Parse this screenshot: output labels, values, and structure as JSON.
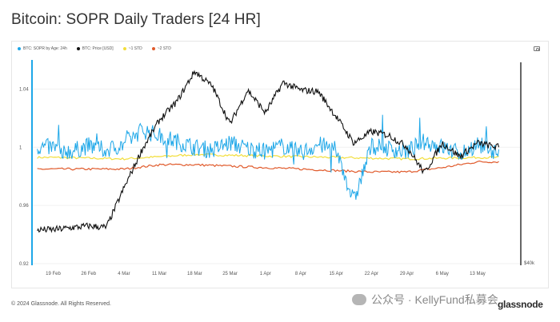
{
  "header": {
    "title": "Bitcoin: SOPR Daily Traders [24 HR]"
  },
  "legend": [
    {
      "label": "BTC: SOPR by Age: 24h",
      "color": "#1ea7e8"
    },
    {
      "label": "BTC: Price [USD]",
      "color": "#111111"
    },
    {
      "label": "~1 STD",
      "color": "#f2de3a"
    },
    {
      "label": "~2 STD",
      "color": "#e05a2b"
    }
  ],
  "footer": {
    "copyright": "© 2024 Glassnode. All Rights Reserved.",
    "watermark": "公众号 · KellyFund私募会",
    "brand": "glassnode"
  },
  "chart_data": {
    "type": "line",
    "y_left": {
      "ticks": [
        "1.04",
        "1",
        "0.96",
        "0.92"
      ],
      "range": [
        0.92,
        1.06
      ]
    },
    "y_right": {
      "ticks": [
        "$40k"
      ]
    },
    "x_ticks": [
      "19 Feb",
      "26 Feb",
      "4 Mar",
      "11 Mar",
      "18 Mar",
      "25 Mar",
      "1 Apr",
      "8 Apr",
      "15 Apr",
      "22 Apr",
      "29 Apr",
      "6 May",
      "13 May"
    ],
    "series": [
      {
        "name": "BTC: SOPR by Age: 24h",
        "color": "#1ea7e8",
        "x": [
          0,
          0.5,
          1,
          1.5,
          2,
          2.5,
          3,
          3.5,
          4,
          4.5,
          5,
          5.5,
          6,
          6.5,
          7,
          7.5,
          8,
          8.5,
          9,
          9.5,
          10,
          10.5,
          11,
          11.5,
          12,
          12.5
        ],
        "values": [
          1.0,
          0.997,
          1.001,
          0.998,
          1.002,
          1.012,
          1.008,
          1.004,
          1.0,
          0.998,
          1.003,
          0.999,
          0.997,
          1.001,
          0.996,
          1.002,
          0.998,
          0.963,
          1.001,
          0.999,
          0.997,
          1.004,
          1.0,
          0.996,
          1.002,
          0.997
        ]
      },
      {
        "name": "BTC: Price [USD]",
        "color": "#111111",
        "x": [
          0,
          1,
          1.5,
          2,
          2.5,
          3,
          3.5,
          4,
          4.5,
          5,
          5.5,
          6,
          6.5,
          7,
          7.5,
          8,
          8.5,
          9,
          9.5,
          10,
          10.5,
          11,
          11.5,
          12,
          12.5
        ],
        "values": [
          51500,
          52000,
          51800,
          57000,
          62000,
          66000,
          68500,
          72500,
          70500,
          65500,
          70000,
          67000,
          71000,
          70000,
          69800,
          66500,
          63000,
          64500,
          64000,
          62500,
          59000,
          63000,
          61200,
          63000,
          62500
        ]
      },
      {
        "name": "~1 STD",
        "color": "#f2de3a",
        "x": [
          0,
          2,
          4,
          6,
          8,
          10,
          12,
          12.5
        ],
        "values": [
          0.993,
          0.992,
          0.995,
          0.994,
          0.993,
          0.992,
          0.993,
          0.993
        ]
      },
      {
        "name": "~2 STD",
        "color": "#e05a2b",
        "x": [
          0,
          2,
          3,
          4,
          6,
          8,
          9,
          10,
          11,
          12,
          12.5
        ],
        "values": [
          0.985,
          0.985,
          0.988,
          0.988,
          0.986,
          0.984,
          0.983,
          0.983,
          0.986,
          0.99,
          0.99
        ]
      }
    ]
  }
}
